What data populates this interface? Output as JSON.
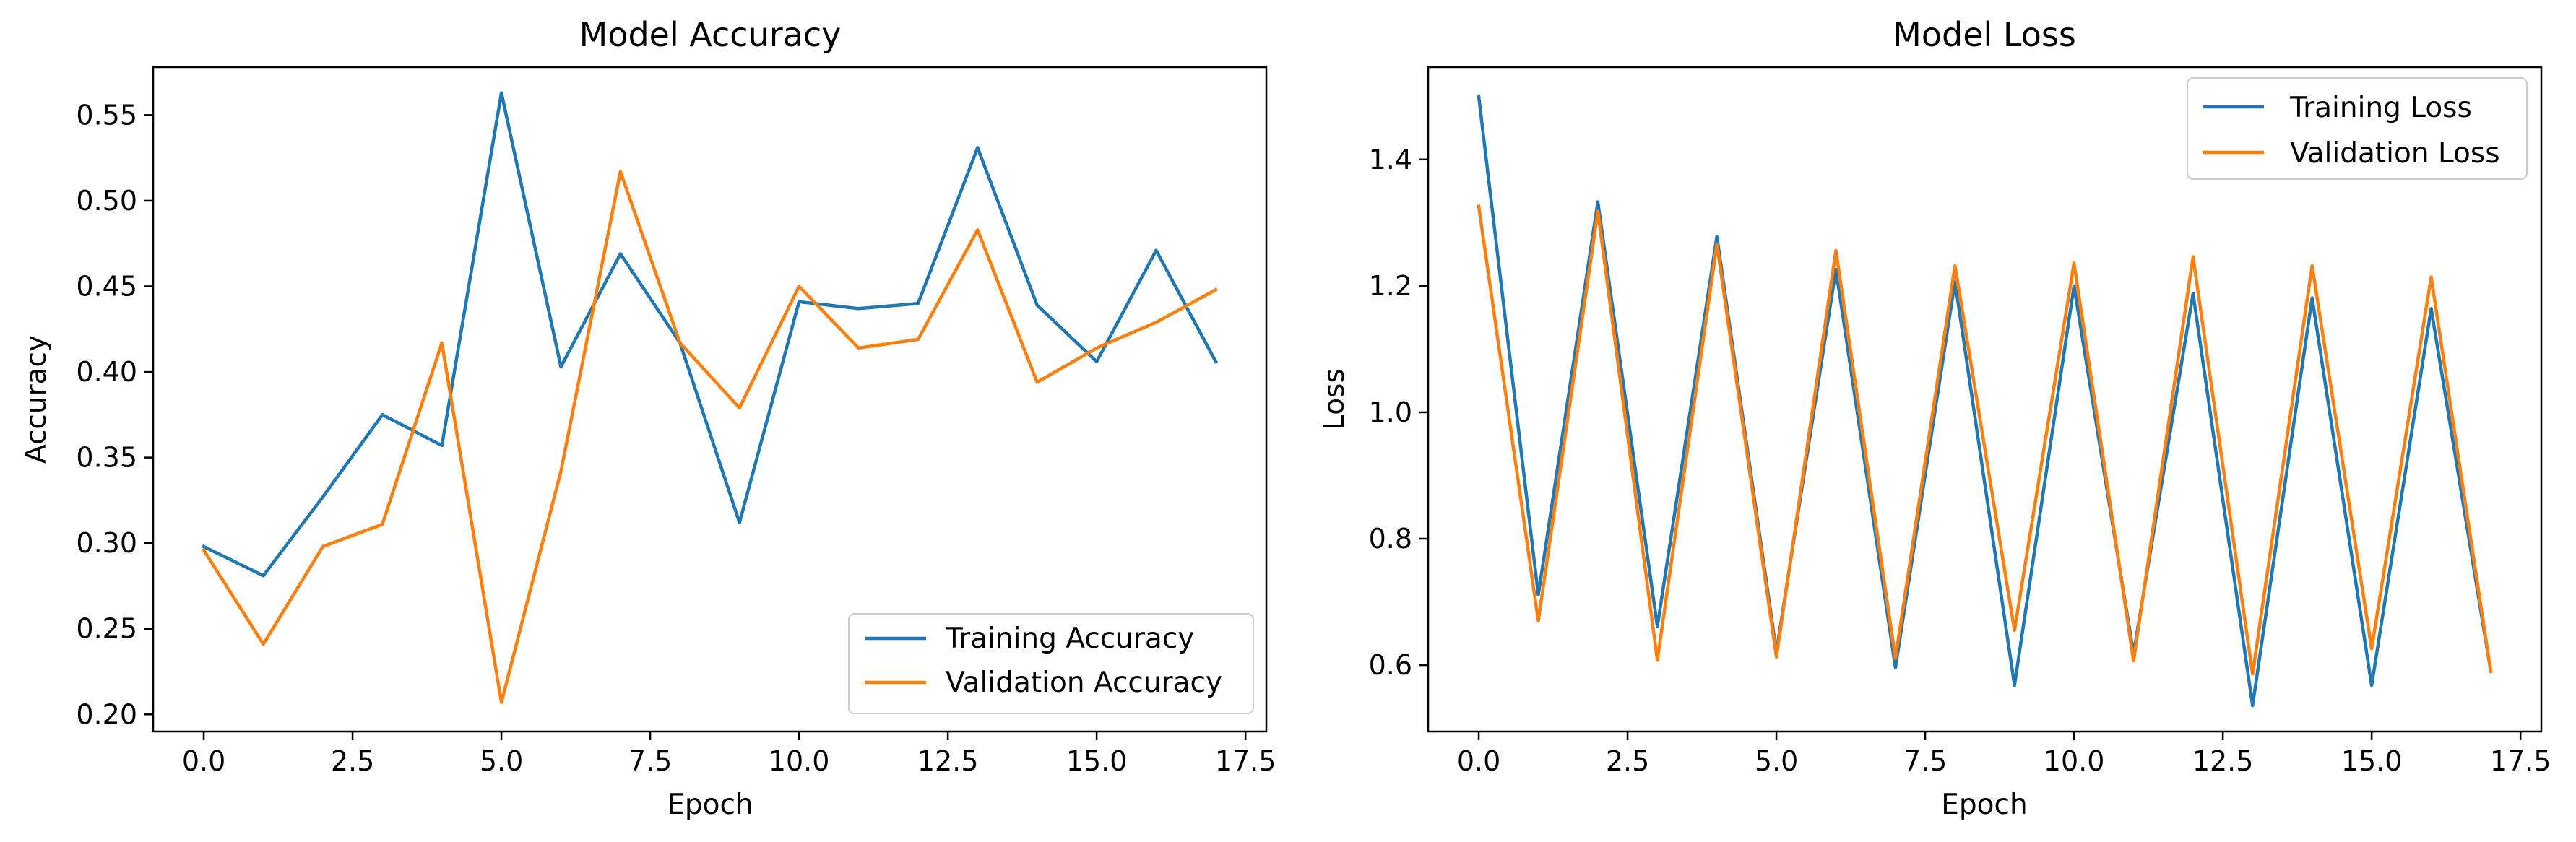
{
  "chart_data": [
    {
      "type": "line",
      "title": "Model Accuracy",
      "xlabel": "Epoch",
      "ylabel": "Accuracy",
      "xlim": [
        -0.85,
        17.85
      ],
      "ylim": [
        0.19,
        0.578
      ],
      "xticks": [
        0,
        2.5,
        5,
        7.5,
        10,
        12.5,
        15,
        17.5
      ],
      "xtick_labels": [
        "0.0",
        "2.5",
        "5.0",
        "7.5",
        "10.0",
        "12.5",
        "15.0",
        "17.5"
      ],
      "yticks": [
        0.2,
        0.25,
        0.3,
        0.35,
        0.4,
        0.45,
        0.5,
        0.55
      ],
      "ytick_labels": [
        "0.20",
        "0.25",
        "0.30",
        "0.35",
        "0.40",
        "0.45",
        "0.50",
        "0.55"
      ],
      "legend_position": "lower right",
      "grid": false,
      "x": [
        0,
        1,
        2,
        3,
        4,
        5,
        6,
        7,
        8,
        9,
        10,
        11,
        12,
        13,
        14,
        15,
        16,
        17
      ],
      "series": [
        {
          "name": "Training Accuracy",
          "color": "#1f77b4",
          "values": [
            0.298,
            0.281,
            0.327,
            0.375,
            0.357,
            0.563,
            0.403,
            0.469,
            0.417,
            0.312,
            0.441,
            0.437,
            0.44,
            0.531,
            0.439,
            0.406,
            0.471,
            0.406
          ]
        },
        {
          "name": "Validation Accuracy",
          "color": "#ff7f0e",
          "values": [
            0.296,
            0.241,
            0.298,
            0.311,
            0.417,
            0.207,
            0.342,
            0.517,
            0.417,
            0.379,
            0.45,
            0.414,
            0.419,
            0.483,
            0.394,
            0.414,
            0.429,
            0.448
          ]
        }
      ]
    },
    {
      "type": "line",
      "title": "Model Loss",
      "xlabel": "Epoch",
      "ylabel": "Loss",
      "xlim": [
        -0.85,
        17.85
      ],
      "ylim": [
        0.495,
        1.546
      ],
      "xticks": [
        0,
        2.5,
        5,
        7.5,
        10,
        12.5,
        15,
        17.5
      ],
      "xtick_labels": [
        "0.0",
        "2.5",
        "5.0",
        "7.5",
        "10.0",
        "12.5",
        "15.0",
        "17.5"
      ],
      "yticks": [
        0.6,
        0.8,
        1.0,
        1.2,
        1.4
      ],
      "ytick_labels": [
        "0.6",
        "0.8",
        "1.0",
        "1.2",
        "1.4"
      ],
      "legend_position": "upper right",
      "grid": false,
      "x": [
        0,
        1,
        2,
        3,
        4,
        5,
        6,
        7,
        8,
        9,
        10,
        11,
        12,
        13,
        14,
        15,
        16,
        17
      ],
      "series": [
        {
          "name": "Training Loss",
          "color": "#1f77b4",
          "values": [
            1.5,
            0.711,
            1.333,
            0.661,
            1.278,
            0.621,
            1.226,
            0.596,
            1.207,
            0.568,
            1.2,
            0.618,
            1.188,
            0.536,
            1.181,
            0.568,
            1.164,
            0.59
          ]
        },
        {
          "name": "Validation Loss",
          "color": "#ff7f0e",
          "values": [
            1.326,
            0.67,
            1.318,
            0.608,
            1.266,
            0.613,
            1.256,
            0.611,
            1.232,
            0.655,
            1.236,
            0.607,
            1.246,
            0.586,
            1.232,
            0.626,
            1.214,
            0.59
          ]
        }
      ]
    }
  ]
}
